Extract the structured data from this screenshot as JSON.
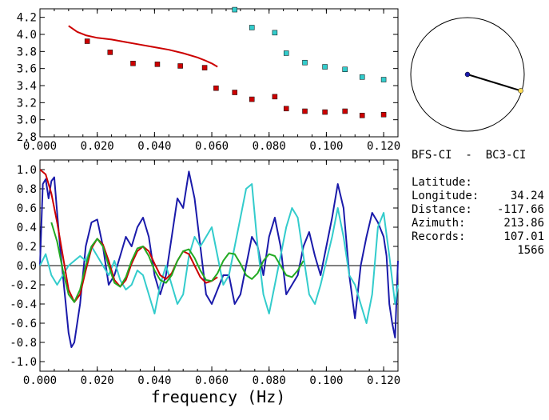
{
  "header": {
    "station_pair": "BFS-CI  -  BC3-CI"
  },
  "info": [
    {
      "label": "Latitude:",
      "value": "34.24"
    },
    {
      "label": "Longitude:",
      "value": "-117.66"
    },
    {
      "label": "Distance:",
      "value": "213.86"
    },
    {
      "label": "Azimuth:",
      "value": "107.01"
    },
    {
      "label": "Records:",
      "value": "1566"
    }
  ],
  "colors": {
    "red": "#cc0000",
    "cyan": "#33cccc",
    "blue": "#1a1aaa",
    "green": "#22aa22",
    "axis": "#000000"
  },
  "azimuth_dial": {
    "azimuth_deg": 107.01,
    "radius_fraction": 0.98
  },
  "chart_data": [
    {
      "type": "scatter",
      "xlim": [
        0.0,
        0.125
      ],
      "ylim": [
        2.8,
        4.3
      ],
      "xticks": [
        "0.000",
        "0.020",
        "0.040",
        "0.060",
        "0.080",
        "0.100",
        "0.120"
      ],
      "yticks": [
        "2.8",
        "3.0",
        "3.2",
        "3.4",
        "3.6",
        "3.8",
        "4.0",
        "4.2"
      ],
      "series": [
        {
          "kind": "line",
          "color": "red",
          "x": [
            0.01,
            0.013,
            0.016,
            0.02,
            0.025,
            0.03,
            0.035,
            0.04,
            0.045,
            0.05,
            0.055,
            0.058,
            0.06,
            0.062
          ],
          "y": [
            4.1,
            4.03,
            3.99,
            3.96,
            3.94,
            3.91,
            3.88,
            3.85,
            3.82,
            3.78,
            3.73,
            3.69,
            3.66,
            3.62
          ]
        },
        {
          "kind": "markers",
          "color": "red",
          "x": [
            0.0165,
            0.0245,
            0.0325,
            0.041,
            0.049,
            0.0575,
            0.0615,
            0.068,
            0.074,
            0.082,
            0.086,
            0.0925,
            0.0995,
            0.1065,
            0.1125,
            0.12
          ],
          "y": [
            3.92,
            3.79,
            3.66,
            3.65,
            3.63,
            3.61,
            3.37,
            3.32,
            3.24,
            3.27,
            3.13,
            3.1,
            3.09,
            3.1,
            3.05,
            3.06
          ]
        },
        {
          "kind": "markers",
          "color": "cyan",
          "x": [
            0.068,
            0.074,
            0.082,
            0.086,
            0.0925,
            0.0995,
            0.1065,
            0.1125,
            0.12
          ],
          "y": [
            4.29,
            4.08,
            4.02,
            3.78,
            3.67,
            3.62,
            3.59,
            3.5,
            3.47
          ]
        }
      ]
    },
    {
      "type": "line",
      "xlabel": "frequency (Hz)",
      "xlim": [
        0.0,
        0.125
      ],
      "ylim": [
        -1.1,
        1.1
      ],
      "xticks": [
        "0.000",
        "0.020",
        "0.040",
        "0.060",
        "0.080",
        "0.100",
        "0.120"
      ],
      "yticks": [
        "-1.0",
        "-0.8",
        "-0.6",
        "-0.4",
        "-0.2",
        "0.0",
        "0.2",
        "0.4",
        "0.6",
        "0.8",
        "1.0"
      ],
      "series": [
        {
          "color": "blue",
          "x": [
            0.0,
            0.001,
            0.002,
            0.003,
            0.004,
            0.005,
            0.006,
            0.007,
            0.008,
            0.009,
            0.01,
            0.011,
            0.012,
            0.014,
            0.016,
            0.018,
            0.02,
            0.022,
            0.024,
            0.026,
            0.028,
            0.03,
            0.032,
            0.034,
            0.036,
            0.038,
            0.04,
            0.042,
            0.044,
            0.046,
            0.048,
            0.05,
            0.052,
            0.054,
            0.056,
            0.058,
            0.06,
            0.062,
            0.064,
            0.066,
            0.068,
            0.07,
            0.072,
            0.074,
            0.076,
            0.078,
            0.08,
            0.082,
            0.084,
            0.086,
            0.088,
            0.09,
            0.092,
            0.094,
            0.096,
            0.098,
            0.1,
            0.102,
            0.104,
            0.106,
            0.108,
            0.11,
            0.112,
            0.114,
            0.116,
            0.118,
            0.12,
            0.121,
            0.122,
            0.123,
            0.124,
            0.125
          ],
          "y": [
            0.0,
            0.85,
            0.9,
            0.7,
            0.88,
            0.92,
            0.55,
            0.2,
            -0.1,
            -0.4,
            -0.7,
            -0.85,
            -0.8,
            -0.4,
            0.2,
            0.45,
            0.48,
            0.2,
            -0.2,
            -0.1,
            0.1,
            0.3,
            0.2,
            0.4,
            0.5,
            0.3,
            -0.1,
            -0.3,
            -0.1,
            0.3,
            0.7,
            0.6,
            0.98,
            0.7,
            0.2,
            -0.3,
            -0.4,
            -0.25,
            -0.1,
            -0.1,
            -0.4,
            -0.3,
            0.0,
            0.3,
            0.2,
            -0.1,
            0.3,
            0.5,
            0.2,
            -0.3,
            -0.2,
            -0.1,
            0.2,
            0.35,
            0.1,
            -0.1,
            0.2,
            0.5,
            0.85,
            0.6,
            -0.1,
            -0.55,
            0.0,
            0.3,
            0.55,
            0.45,
            0.3,
            0.1,
            -0.4,
            -0.6,
            -0.75,
            0.05
          ]
        },
        {
          "color": "cyan",
          "x": [
            0.0,
            0.002,
            0.004,
            0.006,
            0.008,
            0.01,
            0.012,
            0.014,
            0.016,
            0.018,
            0.02,
            0.022,
            0.024,
            0.026,
            0.028,
            0.03,
            0.032,
            0.034,
            0.036,
            0.038,
            0.04,
            0.042,
            0.044,
            0.046,
            0.048,
            0.05,
            0.052,
            0.054,
            0.056,
            0.058,
            0.06,
            0.062,
            0.064,
            0.066,
            0.068,
            0.07,
            0.072,
            0.074,
            0.076,
            0.078,
            0.08,
            0.082,
            0.084,
            0.086,
            0.088,
            0.09,
            0.092,
            0.094,
            0.096,
            0.098,
            0.1,
            0.102,
            0.104,
            0.106,
            0.108,
            0.11,
            0.112,
            0.114,
            0.116,
            0.118,
            0.12,
            0.122,
            0.124,
            0.125
          ],
          "y": [
            0.0,
            0.12,
            -0.1,
            -0.2,
            -0.1,
            0.0,
            0.05,
            0.1,
            0.05,
            0.2,
            0.1,
            0.0,
            -0.1,
            0.05,
            -0.15,
            -0.25,
            -0.2,
            -0.05,
            -0.1,
            -0.3,
            -0.5,
            -0.2,
            0.0,
            -0.2,
            -0.4,
            -0.3,
            0.1,
            0.3,
            0.2,
            0.3,
            0.4,
            0.1,
            -0.2,
            -0.1,
            0.2,
            0.5,
            0.8,
            0.85,
            0.2,
            -0.3,
            -0.5,
            -0.2,
            0.1,
            0.4,
            0.6,
            0.5,
            0.1,
            -0.3,
            -0.4,
            -0.2,
            0.05,
            0.3,
            0.6,
            0.3,
            -0.1,
            -0.2,
            -0.4,
            -0.6,
            -0.3,
            0.4,
            0.55,
            0.1,
            -0.4,
            -0.2
          ]
        },
        {
          "color": "red",
          "x": [
            0.0,
            0.002,
            0.004,
            0.006,
            0.008,
            0.01,
            0.012,
            0.014,
            0.016,
            0.018,
            0.02,
            0.022,
            0.024,
            0.026,
            0.028,
            0.03,
            0.032,
            0.034,
            0.036,
            0.038,
            0.04,
            0.042,
            0.044,
            0.046,
            0.048,
            0.05,
            0.052,
            0.054,
            0.056,
            0.058,
            0.06,
            0.062
          ],
          "y": [
            1.0,
            0.95,
            0.75,
            0.45,
            0.1,
            -0.25,
            -0.38,
            -0.3,
            -0.05,
            0.18,
            0.28,
            0.22,
            0.05,
            -0.15,
            -0.22,
            -0.15,
            0.02,
            0.15,
            0.2,
            0.15,
            0.02,
            -0.1,
            -0.14,
            -0.08,
            0.05,
            0.15,
            0.12,
            0.0,
            -0.12,
            -0.18,
            -0.16,
            -0.12
          ]
        },
        {
          "color": "green",
          "x": [
            0.004,
            0.006,
            0.008,
            0.01,
            0.012,
            0.014,
            0.016,
            0.018,
            0.02,
            0.022,
            0.024,
            0.026,
            0.028,
            0.03,
            0.032,
            0.034,
            0.036,
            0.038,
            0.04,
            0.042,
            0.044,
            0.046,
            0.048,
            0.05,
            0.052,
            0.054,
            0.056,
            0.058,
            0.06,
            0.062,
            0.064,
            0.066,
            0.068,
            0.07,
            0.072,
            0.074,
            0.076,
            0.078,
            0.08,
            0.082,
            0.084,
            0.086,
            0.088,
            0.09,
            0.092
          ],
          "y": [
            0.45,
            0.25,
            -0.05,
            -0.3,
            -0.38,
            -0.25,
            0.0,
            0.2,
            0.28,
            0.2,
            0.0,
            -0.18,
            -0.22,
            -0.12,
            0.05,
            0.18,
            0.2,
            0.1,
            -0.05,
            -0.15,
            -0.18,
            -0.1,
            0.05,
            0.15,
            0.17,
            0.08,
            -0.05,
            -0.15,
            -0.16,
            -0.08,
            0.05,
            0.13,
            0.12,
            0.02,
            -0.1,
            -0.14,
            -0.08,
            0.05,
            0.12,
            0.1,
            0.0,
            -0.1,
            -0.12,
            -0.05,
            0.05
          ]
        }
      ]
    }
  ]
}
